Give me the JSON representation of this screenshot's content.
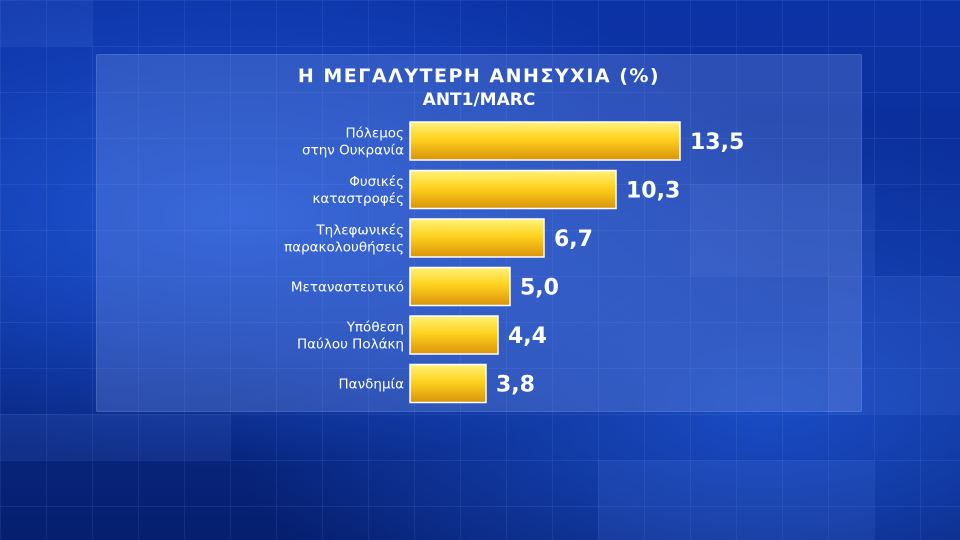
{
  "chart_data": {
    "type": "bar",
    "orientation": "horizontal",
    "title": "Η  ΜΕΓΑΛΥΤΕΡΗ  ΑΝΗΣΥΧΙΑ  (%)",
    "subtitle": "ANT1/MARC",
    "categories": [
      [
        "Πόλεμος",
        "στην Ουκρανία"
      ],
      [
        "Φυσικές",
        "καταστροφές"
      ],
      [
        "Τηλεφωνικές",
        "παρακολουθήσεις"
      ],
      [
        "Μεταναστευτικό"
      ],
      [
        "Υπόθεση",
        "Παύλου Πολάκη"
      ],
      [
        "Πανδημία"
      ]
    ],
    "values": [
      13.5,
      10.3,
      6.7,
      5.0,
      4.4,
      3.8
    ],
    "value_labels": [
      "13,5",
      "10,3",
      "6,7",
      "5,0",
      "4,4",
      "3,8"
    ],
    "xlim": [
      0,
      13.5
    ],
    "grid": false,
    "legend": "none",
    "bar_color": "#f2c318"
  }
}
